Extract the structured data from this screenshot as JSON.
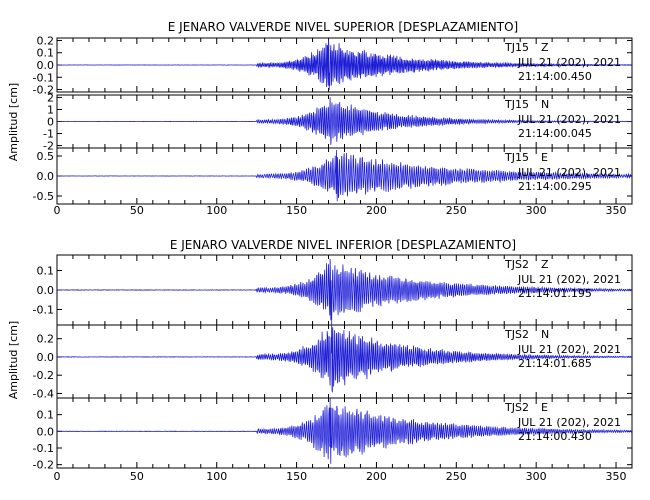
{
  "chart_data": [
    {
      "type": "line",
      "title": "E JENARO VALVERDE NIVEL SUPERIOR [DESPLAZAMIENTO]",
      "ylabel": "Amplitud [cm]",
      "x_ticks": [
        "0",
        "50",
        "100",
        "150",
        "200",
        "250",
        "300",
        "350"
      ],
      "xlim": [
        0,
        360
      ],
      "grid": false,
      "line_color": "#1f1fd6",
      "traces": [
        {
          "station": "TJ15",
          "component": "Z",
          "date": "JUL 21 (202), 2021",
          "time": "21:14:00.450",
          "ylim": [
            -0.22,
            0.22
          ],
          "y_ticks": [
            "0.2",
            "0.1",
            "0.0",
            "-0.1",
            "-0.2"
          ],
          "waveform": {
            "onset": 125,
            "peak_time": 170,
            "peak_amp": 0.21,
            "decay": 45,
            "period": 1.0,
            "noise": 0.001
          }
        },
        {
          "station": "TJ15",
          "component": "N",
          "date": "JUL 21 (202), 2021",
          "time": "21:14:00.045",
          "ylim": [
            -2.2,
            2.2
          ],
          "y_ticks": [
            "2",
            "1",
            "0",
            "-1",
            "-2"
          ],
          "waveform": {
            "onset": 125,
            "peak_time": 171,
            "peak_amp": 2.0,
            "decay": 40,
            "period": 1.2,
            "noise": 0.01
          }
        },
        {
          "station": "TJ15",
          "component": "E",
          "date": "JUL 21 (202), 2021",
          "time": "21:14:00.295",
          "ylim": [
            -0.7,
            0.7
          ],
          "y_ticks": [
            "0.5",
            "0.0",
            "-0.5"
          ],
          "waveform": {
            "onset": 125,
            "peak_time": 175,
            "peak_amp": 0.65,
            "decay": 70,
            "period": 1.4,
            "noise": 0.003
          }
        }
      ]
    },
    {
      "type": "line",
      "title": "E JENARO VALVERDE NIVEL INFERIOR [DESPLAZAMIENTO]",
      "ylabel": "Amplitud [cm]",
      "x_ticks": [
        "0",
        "50",
        "100",
        "150",
        "200",
        "250",
        "300",
        "350"
      ],
      "xlim": [
        0,
        360
      ],
      "grid": false,
      "line_color": "#1f1fd6",
      "traces": [
        {
          "station": "TJS2",
          "component": "Z",
          "date": "JUL 21 (202), 2021",
          "time": "21:14:01.195",
          "ylim": [
            -0.18,
            0.18
          ],
          "y_ticks": [
            "0.1",
            "0.0",
            "-0.1"
          ],
          "waveform": {
            "onset": 125,
            "peak_time": 171,
            "peak_amp": 0.16,
            "decay": 55,
            "period": 1.3,
            "noise": 0.001
          }
        },
        {
          "station": "TJS2",
          "component": "N",
          "date": "JUL 21 (202), 2021",
          "time": "21:14:01.685",
          "ylim": [
            -0.45,
            0.35
          ],
          "y_ticks": [
            "0.2",
            "0.0",
            "-0.2",
            "-0.4"
          ],
          "waveform": {
            "onset": 125,
            "peak_time": 172,
            "peak_amp": 0.4,
            "decay": 45,
            "period": 1.2,
            "noise": 0.002
          }
        },
        {
          "station": "TJS2",
          "component": "E",
          "date": "JUL 21 (202), 2021",
          "time": "21:14:00.430",
          "ylim": [
            -0.22,
            0.2
          ],
          "y_ticks": [
            "0.1",
            "0.0",
            "-0.1",
            "-0.2"
          ],
          "waveform": {
            "onset": 125,
            "peak_time": 171,
            "peak_amp": 0.2,
            "decay": 55,
            "period": 1.3,
            "noise": 0.001
          }
        }
      ]
    }
  ]
}
